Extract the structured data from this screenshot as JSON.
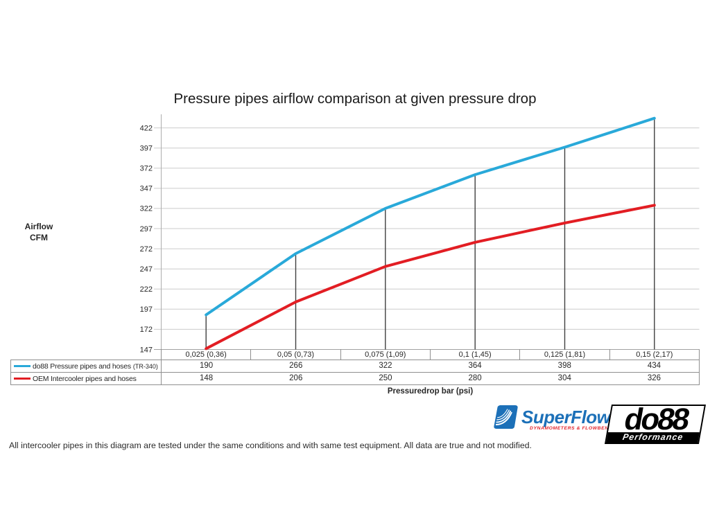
{
  "page": {
    "title": "Pressure pipes airflow comparison at given pressure drop",
    "footnote": "All intercooler pipes in this diagram are tested under the same conditions and with same test equipment. All data are true and not modified."
  },
  "y_axis": {
    "line1": "Airflow",
    "line2": "CFM"
  },
  "x_axis": {
    "title": "Pressuredrop bar (psi)"
  },
  "chart_data": {
    "type": "line",
    "title": "Pressure pipes airflow comparison at given pressure drop",
    "xlabel": "Pressuredrop bar (psi)",
    "ylabel": "Airflow CFM",
    "categories": [
      "0,025 (0,36)",
      "0,05 (0,73)",
      "0,075 (1,09)",
      "0,1 (1,45)",
      "0,125 (1,81)",
      "0,15 (2,17)"
    ],
    "series": [
      {
        "name": "do88 Pressure pipes and hoses",
        "name_suffix": "(TR-340)",
        "color": "#29A9D9",
        "values": [
          190,
          266,
          322,
          364,
          398,
          434
        ]
      },
      {
        "name": "OEM Intercooler pipes and hoses",
        "name_suffix": "",
        "color": "#E21D23",
        "values": [
          148,
          206,
          250,
          280,
          304,
          326
        ]
      }
    ],
    "yticks": [
      147,
      172,
      197,
      222,
      247,
      272,
      297,
      322,
      347,
      372,
      397,
      422
    ],
    "ylim": [
      147,
      438
    ],
    "grid": true,
    "legend_position": "data-table-left",
    "drop_lines_series_index": 0
  },
  "logos": {
    "superflow": {
      "name": "SuperFlow",
      "tm": "™",
      "tagline": "DYNAMOMETERS & FLOWBENCHES",
      "blue": "#1C70B8",
      "red": "#E3242B"
    },
    "do88": {
      "name": "do88",
      "sub": "Performance"
    }
  }
}
